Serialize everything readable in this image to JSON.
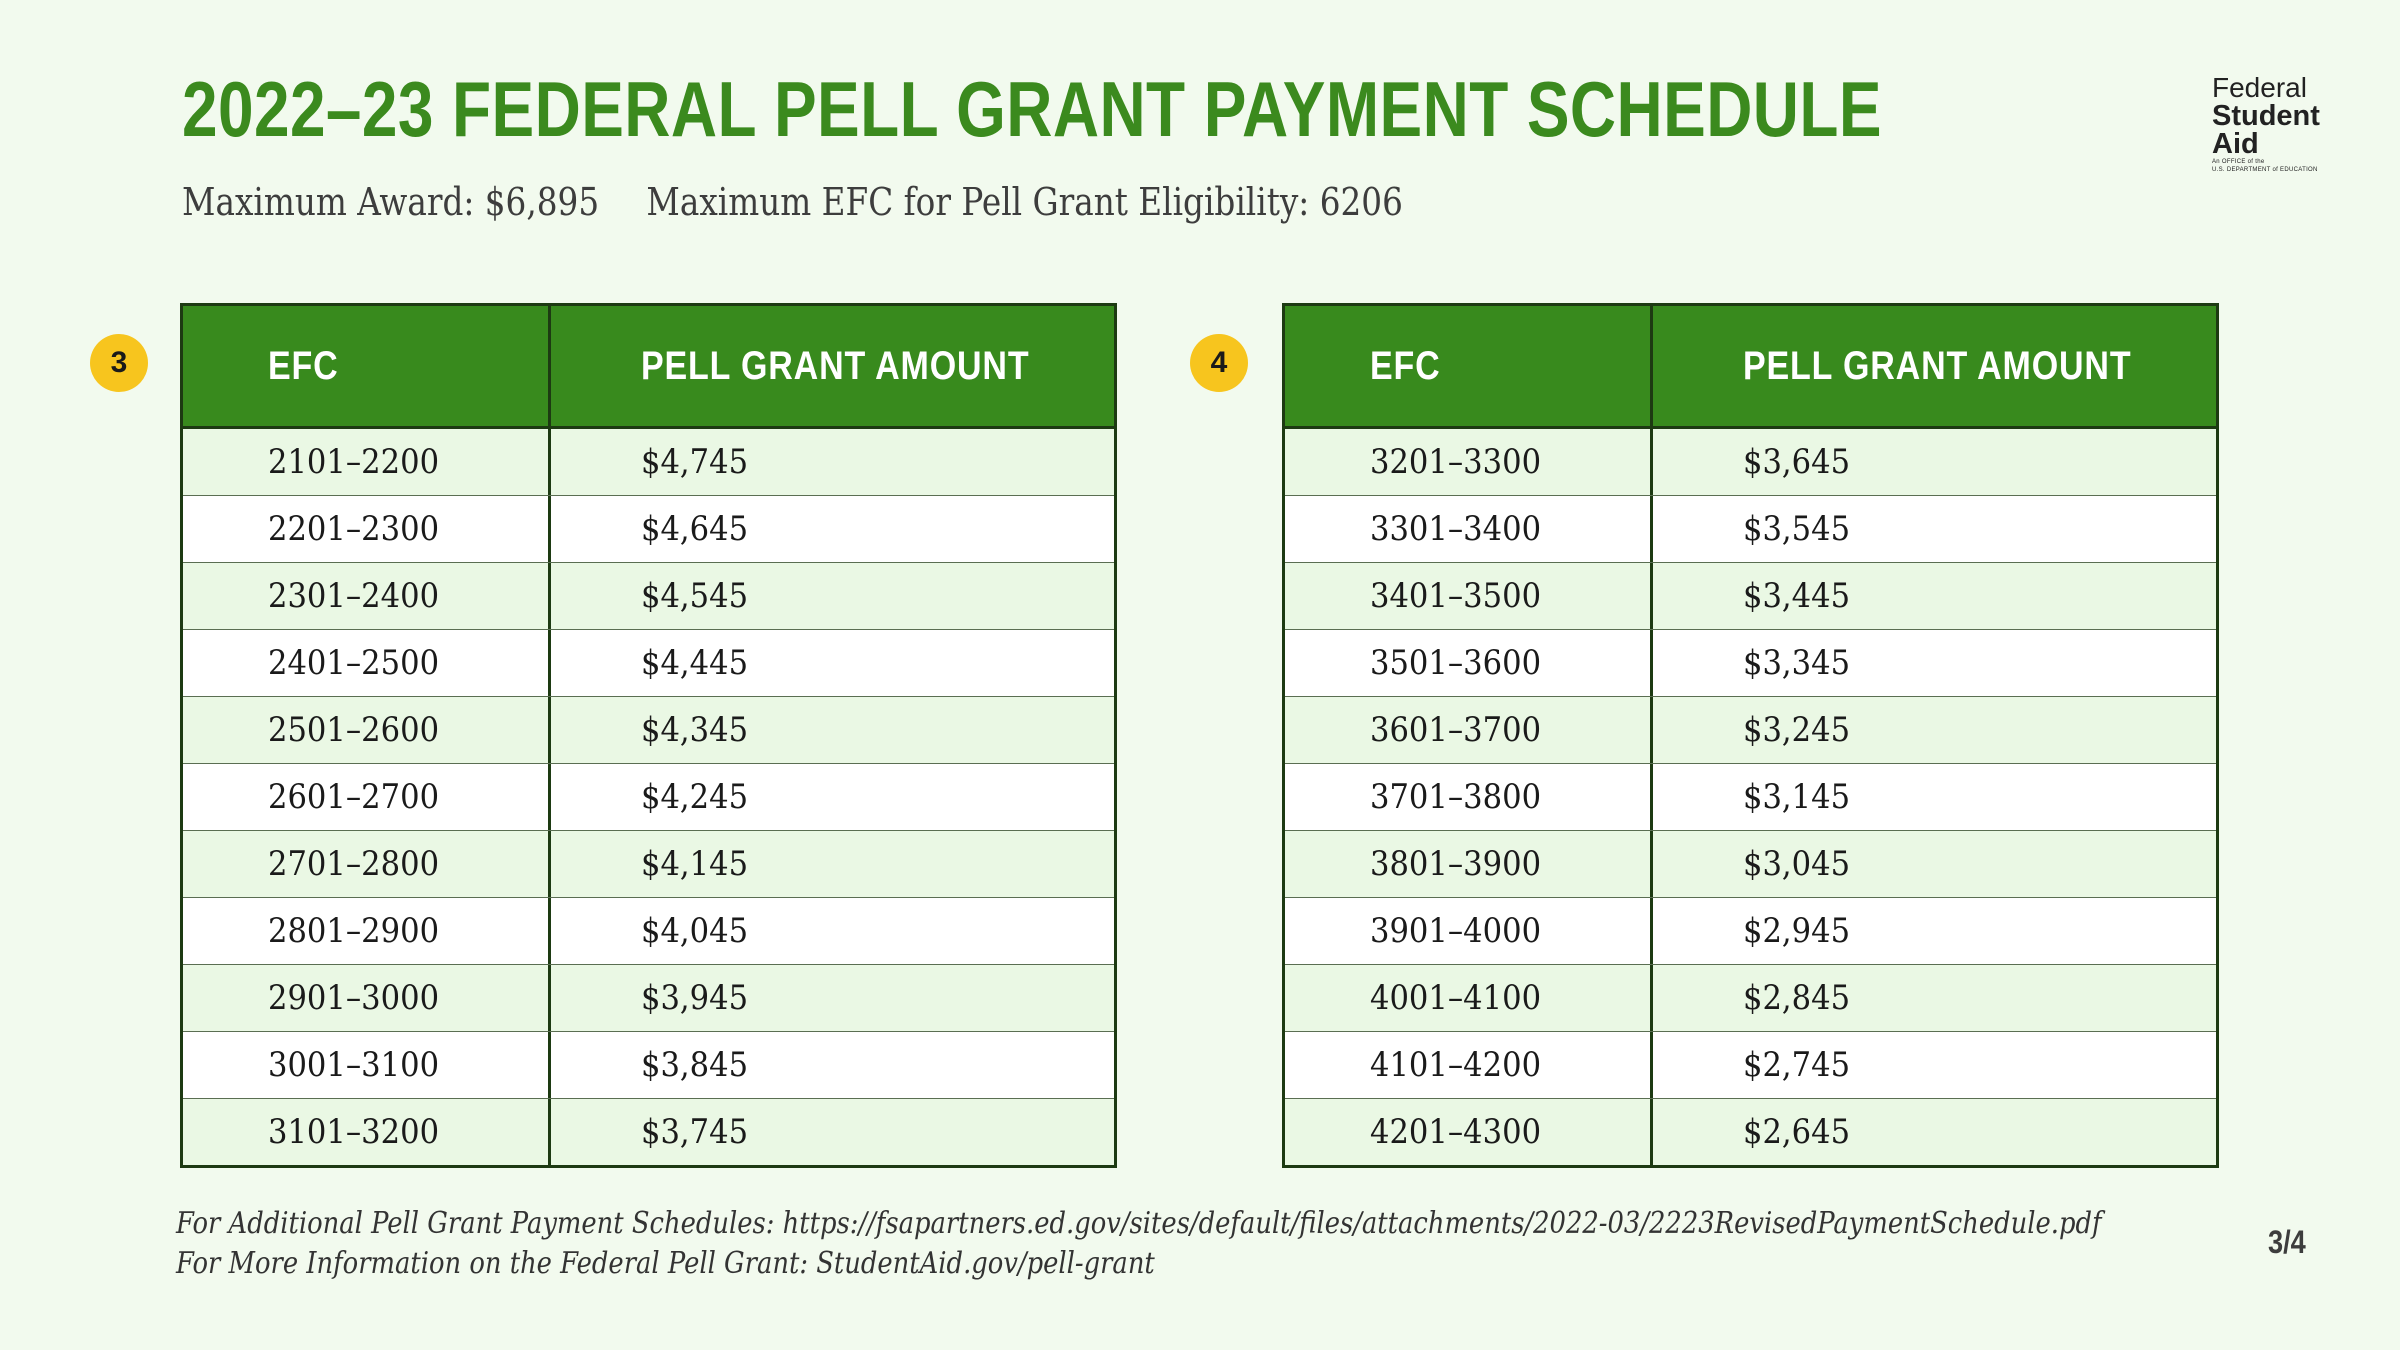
{
  "title": "2022–23 FEDERAL PELL GRANT PAYMENT SCHEDULE",
  "subtitle": {
    "max_award": "Maximum Award: $6,895",
    "max_efc": "Maximum EFC for Pell Grant Eligibility: 6206"
  },
  "logo": {
    "line1": "Federal",
    "line2": "Student",
    "line3": "Aid",
    "line4": "An OFFICE of the",
    "line5": "U.S. DEPARTMENT of EDUCATION"
  },
  "tables": [
    {
      "badge": "3",
      "headers": [
        "EFC",
        "PELL GRANT AMOUNT"
      ],
      "rows": [
        [
          "2101–2200",
          "$4,745"
        ],
        [
          "2201–2300",
          "$4,645"
        ],
        [
          "2301–2400",
          "$4,545"
        ],
        [
          "2401–2500",
          "$4,445"
        ],
        [
          "2501–2600",
          "$4,345"
        ],
        [
          "2601–2700",
          "$4,245"
        ],
        [
          "2701–2800",
          "$4,145"
        ],
        [
          "2801–2900",
          "$4,045"
        ],
        [
          "2901–3000",
          "$3,945"
        ],
        [
          "3001–3100",
          "$3,845"
        ],
        [
          "3101–3200",
          "$3,745"
        ]
      ]
    },
    {
      "badge": "4",
      "headers": [
        "EFC",
        "PELL GRANT AMOUNT"
      ],
      "rows": [
        [
          "3201–3300",
          "$3,645"
        ],
        [
          "3301–3400",
          "$3,545"
        ],
        [
          "3401–3500",
          "$3,445"
        ],
        [
          "3501–3600",
          "$3,345"
        ],
        [
          "3601–3700",
          "$3,245"
        ],
        [
          "3701–3800",
          "$3,145"
        ],
        [
          "3801–3900",
          "$3,045"
        ],
        [
          "3901–4000",
          "$2,945"
        ],
        [
          "4001–4100",
          "$2,845"
        ],
        [
          "4101–4200",
          "$2,745"
        ],
        [
          "4201–4300",
          "$2,645"
        ]
      ]
    }
  ],
  "footer": {
    "line1": "For Additional Pell Grant Payment Schedules: https://fsapartners.ed.gov/sites/default/files/attachments/2022-03/2223RevisedPaymentSchedule.pdf",
    "line2": "For More Information on the Federal Pell Grant: StudentAid.gov/pell-grant"
  },
  "page_number": "3/4",
  "colors": {
    "background": "#f2faee",
    "title_green": "#3b8a1e",
    "header_green": "#388a1d",
    "alt_row": "#eaf8e4",
    "badge_yellow": "#f7c51e"
  }
}
